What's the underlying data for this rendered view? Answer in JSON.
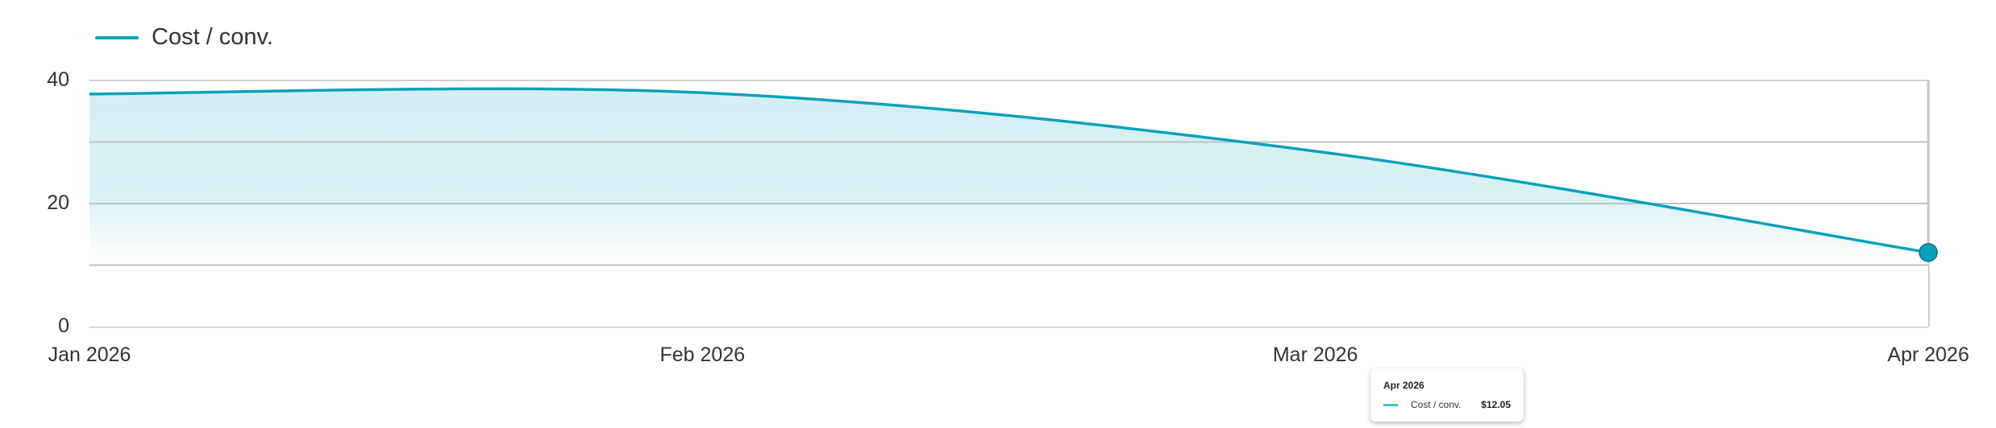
{
  "chart_data": {
    "type": "area",
    "title": "",
    "xlabel": "",
    "ylabel": "",
    "categories": [
      "Jan 2026",
      "Feb 2026",
      "Mar 2026",
      "Apr 2026"
    ],
    "series": [
      {
        "name": "Cost / conv.",
        "values": [
          37.8,
          38.0,
          28.5,
          12.05
        ],
        "color": "#0aa1bb"
      }
    ],
    "ylim": [
      0,
      40
    ],
    "yticks": [
      0,
      10,
      20,
      30,
      40
    ],
    "ytick_labels": [
      "0",
      "",
      "20",
      "",
      "40"
    ],
    "grid": true,
    "legend": "top-left",
    "smooth": true,
    "highlight_point": "Apr 2026"
  },
  "legend": {
    "label": "Cost / conv."
  },
  "tooltip": {
    "title": "Apr 2026",
    "series": "Cost / conv.",
    "value": "$12.05"
  }
}
